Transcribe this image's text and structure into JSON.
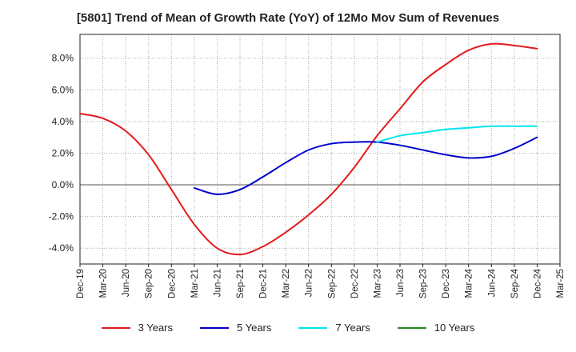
{
  "chart_data": {
    "type": "line",
    "title": "[5801]  Trend of Mean of Growth Rate (YoY) of 12Mo Mov Sum of Revenues",
    "xlabel": "",
    "ylabel": "",
    "ylim": [
      -5.0,
      9.5
    ],
    "y_ticks": [
      8.0,
      6.0,
      4.0,
      2.0,
      0.0,
      -2.0,
      -4.0
    ],
    "y_tick_labels": [
      "8.0%",
      "6.0%",
      "4.0%",
      "2.0%",
      "0.0%",
      "-2.0%",
      "-4.0%"
    ],
    "x_tick_labels": [
      "Dec-19",
      "Mar-20",
      "Jun-20",
      "Sep-20",
      "Dec-20",
      "Mar-21",
      "Jun-21",
      "Sep-21",
      "Dec-21",
      "Mar-22",
      "Jun-22",
      "Sep-22",
      "Dec-22",
      "Mar-23",
      "Jun-23",
      "Sep-23",
      "Dec-23",
      "Mar-24",
      "Jun-24",
      "Sep-24",
      "Dec-24",
      "Mar-25"
    ],
    "grid": true,
    "series": [
      {
        "name": "3 Years",
        "color": "#e41a1c",
        "x_index": [
          0,
          1,
          2,
          3,
          4,
          5,
          6,
          7,
          8,
          9,
          10,
          11,
          12,
          13,
          14,
          15,
          16,
          17,
          18,
          19,
          20
        ],
        "values": [
          4.5,
          4.2,
          3.4,
          1.9,
          -0.3,
          -2.5,
          -4.0,
          -4.4,
          -3.9,
          -3.0,
          -1.9,
          -0.6,
          1.1,
          3.1,
          4.8,
          6.5,
          7.6,
          8.5,
          8.9,
          8.8,
          8.6
        ]
      },
      {
        "name": "5 Years",
        "color": "#0000cc",
        "x_index": [
          5,
          6,
          7,
          8,
          9,
          10,
          11,
          12,
          13,
          14,
          15,
          16,
          17,
          18,
          19,
          20
        ],
        "values": [
          -0.2,
          -0.6,
          -0.3,
          0.5,
          1.4,
          2.2,
          2.6,
          2.7,
          2.7,
          2.5,
          2.2,
          1.9,
          1.7,
          1.8,
          2.3,
          3.0
        ]
      },
      {
        "name": "7 Years",
        "color": "#00e5ee",
        "x_index": [
          13,
          14,
          15,
          16,
          17,
          18,
          19,
          20
        ],
        "values": [
          2.7,
          3.1,
          3.3,
          3.5,
          3.6,
          3.7,
          3.7,
          3.7
        ]
      },
      {
        "name": "10 Years",
        "color": "#228b22",
        "x_index": [],
        "values": []
      }
    ]
  }
}
